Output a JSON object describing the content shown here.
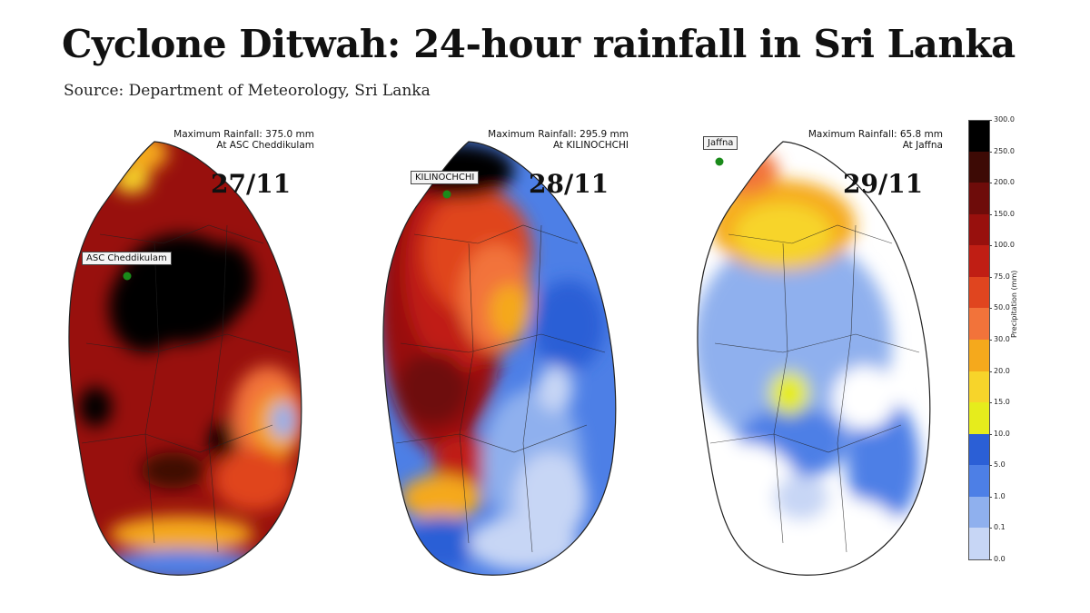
{
  "header": {
    "title": "Cyclone Ditwah: 24-hour rainfall in Sri Lanka",
    "source": "Source: Department of Meteorology, Sri Lanka"
  },
  "panels": [
    {
      "date": "27/11",
      "max_rainfall_line": "Maximum Rainfall: 375.0 mm",
      "max_location_line": "At  ASC Cheddikulam",
      "station_label": "ASC Cheddikulam"
    },
    {
      "date": "28/11",
      "max_rainfall_line": "Maximum Rainfall: 295.9 mm",
      "max_location_line": "At KILINOCHCHI",
      "station_label": "KILINOCHCHI"
    },
    {
      "date": "29/11",
      "max_rainfall_line": "Maximum Rainfall: 65.8 mm",
      "max_location_line": "At Jaffna",
      "station_label": "Jaffna"
    }
  ],
  "colorbar": {
    "label": "Precipitation (mm)",
    "ticks": [
      "300.0",
      "250.0",
      "200.0",
      "150.0",
      "100.0",
      "75.0",
      "50.0",
      "30.0",
      "20.0",
      "15.0",
      "10.0",
      "5.0",
      "1.0",
      "0.1",
      "0.0"
    ],
    "colors": [
      "#000000",
      "#3d0a05",
      "#6e0c0a",
      "#98100d",
      "#c01e14",
      "#e0451f",
      "#f2733a",
      "#f5a91c",
      "#f7d42a",
      "#e6ec1c",
      "#2b5fd6",
      "#4d7fe6",
      "#8fb0ee",
      "#c7d6f5",
      "#ffffff"
    ]
  }
}
